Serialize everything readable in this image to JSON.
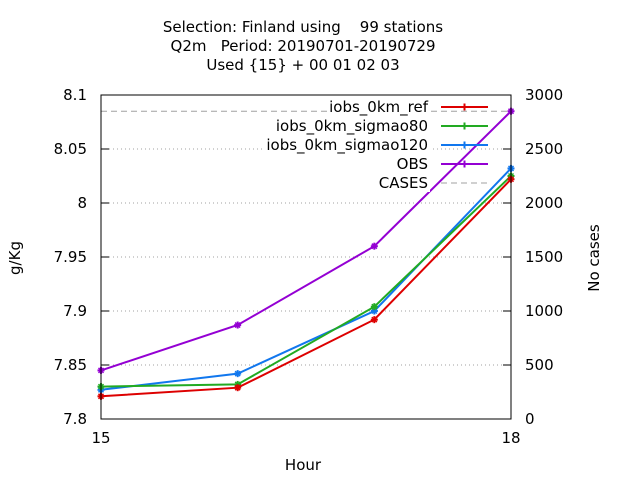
{
  "chart_data": {
    "type": "line",
    "title_lines": [
      "Selection: Finland using    99 stations",
      "Q2m   Period: 20190701-20190729",
      "Used {15} + 00 01 02 03"
    ],
    "xlabel": "Hour",
    "ylabel": "g/Kg",
    "y2label": "No cases",
    "x": [
      15,
      16,
      17,
      18
    ],
    "xlim": [
      15,
      18
    ],
    "ylim": [
      7.8,
      8.1
    ],
    "y2lim": [
      0,
      3000
    ],
    "xticks": [
      15,
      18
    ],
    "xtick_labels": [
      "15",
      "18"
    ],
    "yticks": [
      7.8,
      7.85,
      7.9,
      7.95,
      8.0,
      8.05,
      8.1
    ],
    "ytick_labels": [
      "7.8",
      "7.85",
      "7.9",
      "7.95",
      "8",
      "8.05",
      "8.1"
    ],
    "y2ticks": [
      0,
      500,
      1000,
      1500,
      2000,
      2500,
      3000
    ],
    "y2tick_labels": [
      "0",
      "500",
      "1000",
      "1500",
      "2000",
      "2500",
      "3000"
    ],
    "grid": true,
    "legend_position": "top-right",
    "series": [
      {
        "name": "iobs_0km_ref",
        "color": "#dd0000",
        "axis": "y",
        "values": [
          7.821,
          7.829,
          7.892,
          8.022
        ]
      },
      {
        "name": "iobs_0km_sigmao80",
        "color": "#22aa22",
        "axis": "y",
        "values": [
          7.83,
          7.832,
          7.904,
          8.025
        ]
      },
      {
        "name": "iobs_0km_sigmao120",
        "color": "#1177ee",
        "axis": "y",
        "values": [
          7.827,
          7.842,
          7.9,
          8.032
        ]
      },
      {
        "name": "OBS",
        "color": "#9400d3",
        "axis": "y",
        "values": [
          7.845,
          7.887,
          7.96,
          8.085
        ]
      },
      {
        "name": "CASES",
        "color": "#a0a0a0",
        "axis": "y2",
        "dashed": true,
        "values": [
          2850,
          2850,
          2850,
          2850
        ]
      }
    ]
  }
}
